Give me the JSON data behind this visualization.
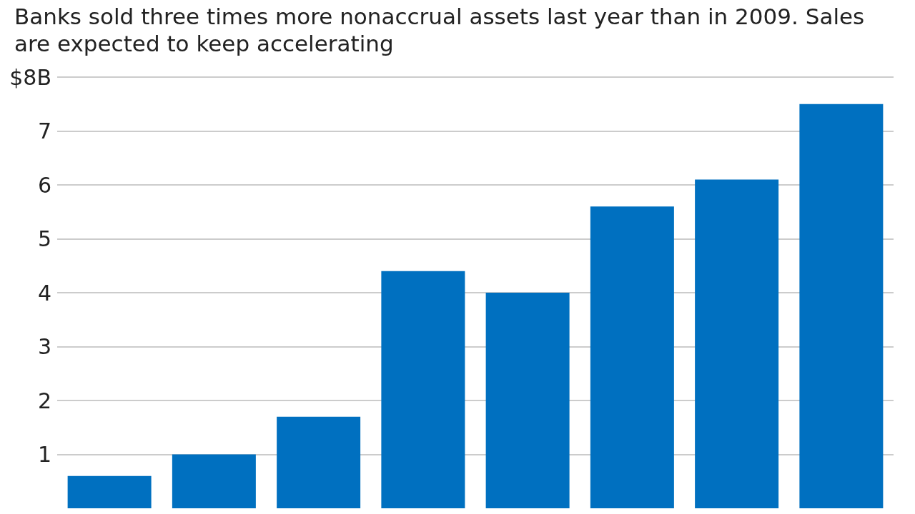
{
  "chart_data": {
    "type": "bar",
    "subtitle": "Banks sold three times more nonaccrual assets last year than in 2009. Sales are expected to keep accelerating",
    "categories": [
      null,
      null,
      null,
      null,
      null,
      null,
      null,
      null
    ],
    "values": [
      0.6,
      1.0,
      1.7,
      4.4,
      4.0,
      5.6,
      6.1,
      7.5
    ],
    "color": "#0070c0",
    "ylim": [
      0,
      8
    ],
    "yticks": [
      1,
      2,
      3,
      4,
      5,
      6,
      7,
      {
        "value": 8,
        "label": "$8B"
      }
    ],
    "grid": "y"
  }
}
